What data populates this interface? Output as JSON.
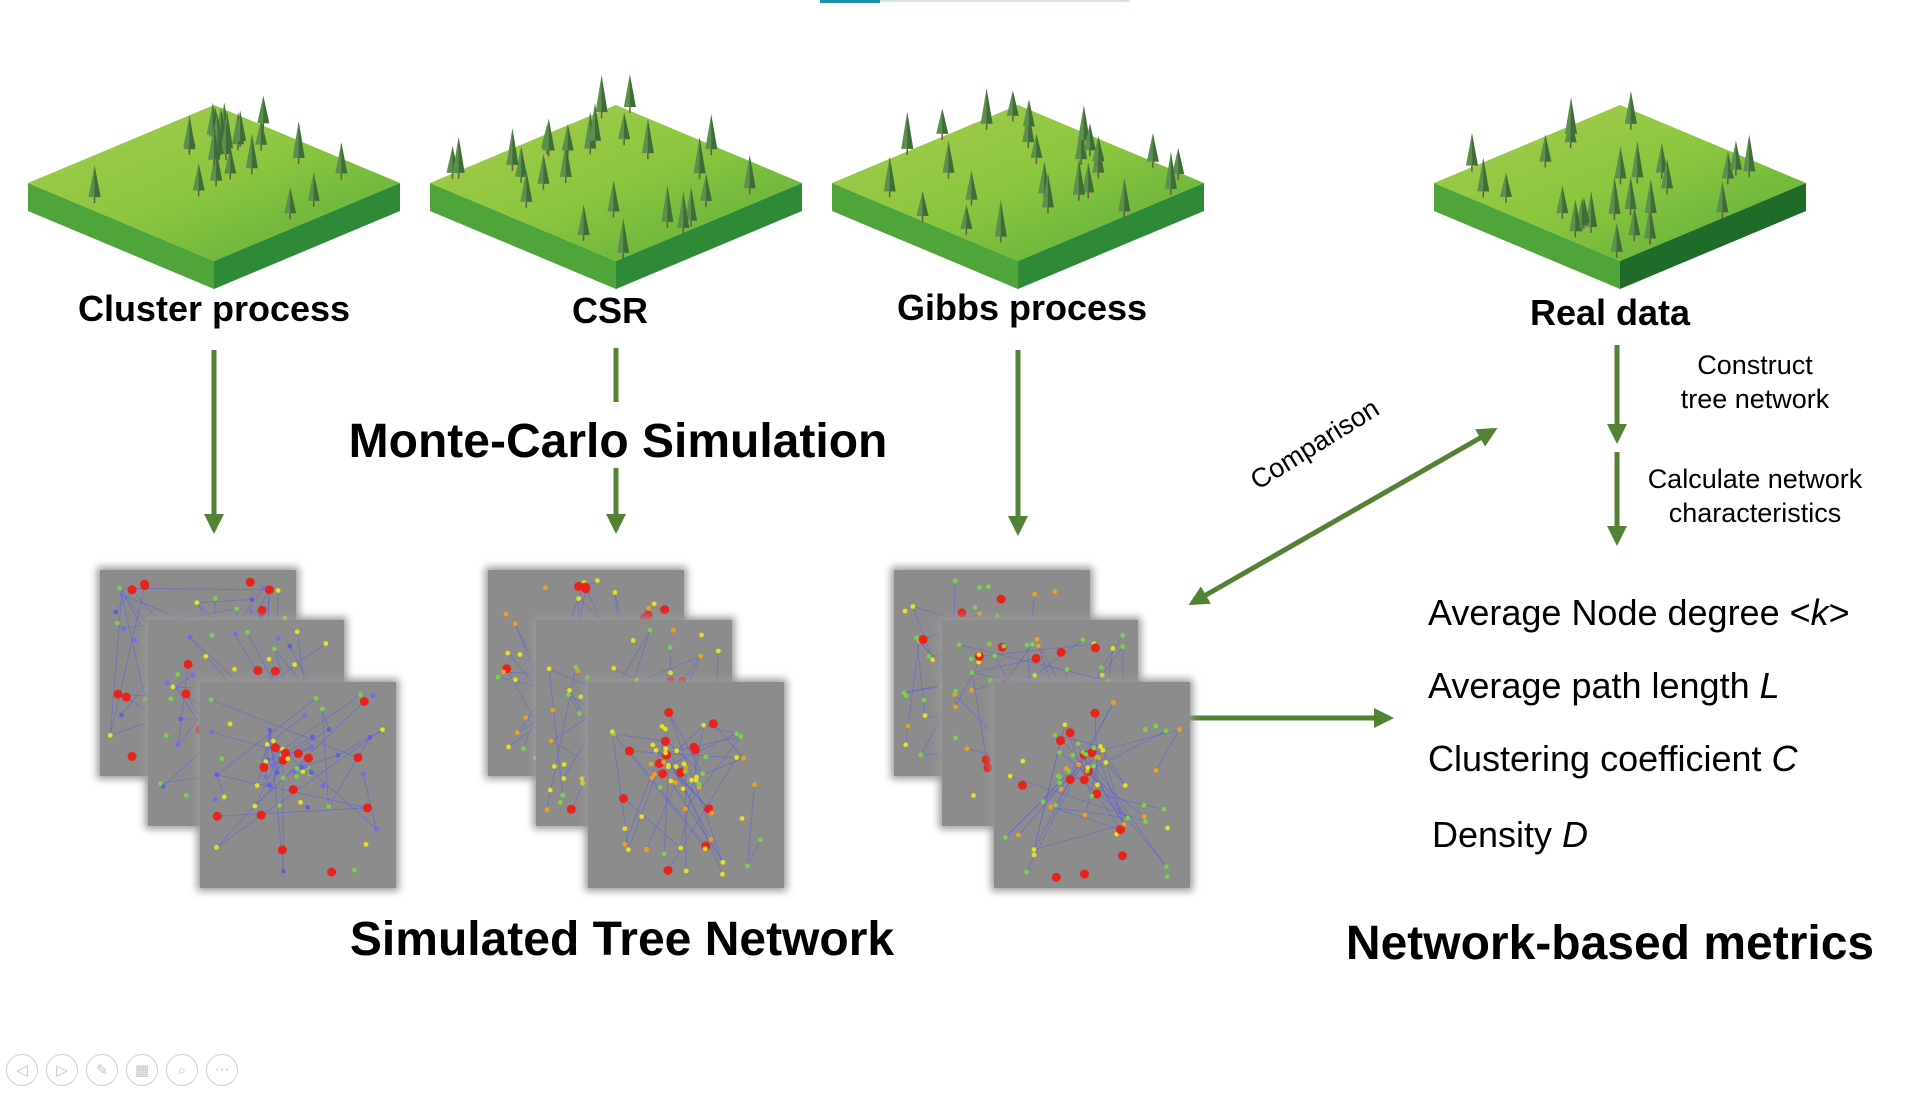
{
  "processes": [
    {
      "label": "Cluster process"
    },
    {
      "label": "CSR"
    },
    {
      "label": "Gibbs process"
    }
  ],
  "real_data": {
    "label": "Real data",
    "step1": "Construct\ntree network",
    "step2": "Calculate network\ncharacteristics"
  },
  "headings": {
    "monte_carlo": "Monte-Carlo Simulation",
    "simulated": "Simulated Tree Network",
    "metrics_title": "Network-based metrics"
  },
  "comparison_label": "Comparison",
  "metrics": [
    {
      "text": "Average Node degree <",
      "symbol": "k",
      "suffix": ">"
    },
    {
      "text": "Average path length ",
      "symbol": "L",
      "suffix": ""
    },
    {
      "text": "Clustering coefficient ",
      "symbol": "C",
      "suffix": ""
    },
    {
      "text": "Density ",
      "symbol": "D",
      "suffix": ""
    }
  ],
  "colors": {
    "arrow": "#548235",
    "ground_top": "#8cc63f",
    "ground_side": "#3c8d2f",
    "tree": "#5d8f4e",
    "edge_blue": "#5a5fe0",
    "node_red": "#e8231c",
    "node_yellow": "#e6e020",
    "node_orange": "#f0a020",
    "node_green": "#7bd14a"
  },
  "toolbar": [
    {
      "name": "prev-slide-icon",
      "glyph": "◁"
    },
    {
      "name": "next-slide-icon",
      "glyph": "▷"
    },
    {
      "name": "pen-icon",
      "glyph": "✎"
    },
    {
      "name": "slides-grid-icon",
      "glyph": "▦"
    },
    {
      "name": "zoom-icon",
      "glyph": "⌕"
    },
    {
      "name": "more-options-icon",
      "glyph": "···"
    }
  ]
}
